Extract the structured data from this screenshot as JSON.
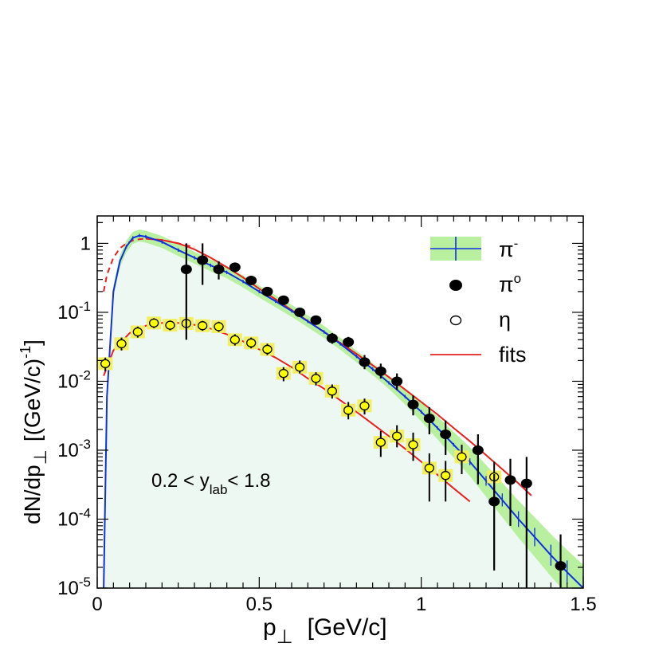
{
  "chart_data": {
    "type": "scatter",
    "scale": {
      "x": "linear",
      "y": "log"
    },
    "xlim": [
      0,
      1.5
    ],
    "ylim": [
      1e-05,
      2.5
    ],
    "xticks": [
      {
        "value": 0,
        "label": "0"
      },
      {
        "value": 0.5,
        "label": "0.5"
      },
      {
        "value": 1,
        "label": "1"
      },
      {
        "value": 1.5,
        "label": "1.5"
      }
    ],
    "yticks": [
      {
        "value": 1,
        "base": "1",
        "exp": ""
      },
      {
        "value": 0.1,
        "base": "10",
        "exp": "-1"
      },
      {
        "value": 0.01,
        "base": "10",
        "exp": "-2"
      },
      {
        "value": 0.001,
        "base": "10",
        "exp": "-3"
      },
      {
        "value": 0.0001,
        "base": "10",
        "exp": "-4"
      },
      {
        "value": 1e-05,
        "base": "10",
        "exp": "-5"
      }
    ],
    "xlabel": {
      "main": "p",
      "sub": "⊥",
      "unit": "[GeV/c]"
    },
    "ylabel": {
      "main": "dN/dp",
      "sub": "⊥",
      "unit": "[(GeV/c)",
      "sup": "-1",
      "close": "]"
    },
    "annotation": {
      "pre": "0.2 < y",
      "sub": "lab",
      "post": "< 1.8"
    },
    "legend": {
      "position": "top-right",
      "entries": [
        {
          "key": "piminus",
          "label": "π",
          "sup": "-"
        },
        {
          "key": "pi0",
          "label": "π",
          "sup": "o"
        },
        {
          "key": "eta",
          "label": "η",
          "sup": ""
        },
        {
          "key": "fits",
          "label": "fits",
          "sup": ""
        }
      ]
    },
    "colors": {
      "piminus_line": "#1030e0",
      "piminus_band": "#b8f0a0",
      "fill_area": "#eef8f2",
      "fit": "#e82020",
      "pi0_marker": "#000000",
      "eta_marker": "#ffff00",
      "eta_box": "#f2f060"
    },
    "series": [
      {
        "name": "piminus",
        "style": "line_with_band",
        "x": [
          0.02,
          0.03,
          0.05,
          0.07,
          0.09,
          0.11,
          0.13,
          0.15,
          0.2,
          0.25,
          0.3,
          0.35,
          0.4,
          0.45,
          0.5,
          0.55,
          0.6,
          0.65,
          0.7,
          0.75,
          0.8,
          0.85,
          0.9,
          0.95,
          1.0,
          1.05,
          1.1,
          1.15,
          1.2,
          1.25,
          1.3,
          1.35,
          1.4,
          1.45,
          1.5
        ],
        "y": [
          1e-05,
          0.006,
          0.2,
          0.55,
          0.9,
          1.2,
          1.3,
          1.25,
          1.05,
          0.8,
          0.62,
          0.48,
          0.38,
          0.28,
          0.2,
          0.145,
          0.105,
          0.074,
          0.052,
          0.035,
          0.023,
          0.015,
          0.0095,
          0.006,
          0.0036,
          0.0021,
          0.0012,
          0.00068,
          0.00036,
          0.00019,
          0.0001,
          5.5e-05,
          3e-05,
          1.7e-05,
          1e-05
        ]
      },
      {
        "name": "pi0",
        "style": "filled_circle",
        "points": [
          {
            "x": 0.275,
            "y": 0.42,
            "lo": 0.04,
            "hi": 1.0
          },
          {
            "x": 0.325,
            "y": 0.57,
            "lo": 0.25,
            "hi": 1.0
          },
          {
            "x": 0.375,
            "y": 0.42,
            "lo": 0.3,
            "hi": 0.55
          },
          {
            "x": 0.425,
            "y": 0.45,
            "lo": 0.38,
            "hi": 0.52
          },
          {
            "x": 0.475,
            "y": 0.29,
            "lo": 0.25,
            "hi": 0.33
          },
          {
            "x": 0.525,
            "y": 0.2,
            "lo": 0.17,
            "hi": 0.23
          },
          {
            "x": 0.575,
            "y": 0.15,
            "lo": 0.13,
            "hi": 0.17
          },
          {
            "x": 0.625,
            "y": 0.1,
            "lo": 0.087,
            "hi": 0.115
          },
          {
            "x": 0.675,
            "y": 0.077,
            "lo": 0.066,
            "hi": 0.088
          },
          {
            "x": 0.725,
            "y": 0.042,
            "lo": 0.035,
            "hi": 0.05
          },
          {
            "x": 0.775,
            "y": 0.037,
            "lo": 0.031,
            "hi": 0.044
          },
          {
            "x": 0.825,
            "y": 0.019,
            "lo": 0.015,
            "hi": 0.024
          },
          {
            "x": 0.875,
            "y": 0.014,
            "lo": 0.011,
            "hi": 0.018
          },
          {
            "x": 0.925,
            "y": 0.01,
            "lo": 0.0075,
            "hi": 0.013
          },
          {
            "x": 0.975,
            "y": 0.0046,
            "lo": 0.0032,
            "hi": 0.0062
          },
          {
            "x": 1.025,
            "y": 0.0029,
            "lo": 0.0017,
            "hi": 0.0042
          },
          {
            "x": 1.075,
            "y": 0.0017,
            "lo": 0.00085,
            "hi": 0.0027
          },
          {
            "x": 1.175,
            "y": 0.001,
            "lo": 0.00032,
            "hi": 0.0017
          },
          {
            "x": 1.225,
            "y": 0.00018,
            "lo": 1.8e-05,
            "hi": 0.00045
          },
          {
            "x": 1.275,
            "y": 0.00037,
            "lo": 8e-05,
            "hi": 0.00075
          },
          {
            "x": 1.325,
            "y": 0.00033,
            "lo": 1e-05,
            "hi": 0.0008
          },
          {
            "x": 1.43,
            "y": 2.1e-05,
            "lo": 1e-05,
            "hi": 6e-05
          }
        ]
      },
      {
        "name": "eta",
        "style": "open_circle",
        "points": [
          {
            "x": 0.025,
            "y": 0.018,
            "lo": 0.014,
            "hi": 0.022
          },
          {
            "x": 0.075,
            "y": 0.035,
            "lo": 0.028,
            "hi": 0.043
          },
          {
            "x": 0.125,
            "y": 0.052,
            "lo": 0.043,
            "hi": 0.062
          },
          {
            "x": 0.175,
            "y": 0.07,
            "lo": 0.059,
            "hi": 0.082
          },
          {
            "x": 0.225,
            "y": 0.065,
            "lo": 0.055,
            "hi": 0.076
          },
          {
            "x": 0.275,
            "y": 0.069,
            "lo": 0.058,
            "hi": 0.08
          },
          {
            "x": 0.325,
            "y": 0.064,
            "lo": 0.054,
            "hi": 0.075
          },
          {
            "x": 0.375,
            "y": 0.062,
            "lo": 0.052,
            "hi": 0.073
          },
          {
            "x": 0.425,
            "y": 0.04,
            "lo": 0.033,
            "hi": 0.048
          },
          {
            "x": 0.475,
            "y": 0.036,
            "lo": 0.03,
            "hi": 0.043
          },
          {
            "x": 0.525,
            "y": 0.029,
            "lo": 0.024,
            "hi": 0.035
          },
          {
            "x": 0.575,
            "y": 0.013,
            "lo": 0.01,
            "hi": 0.016
          },
          {
            "x": 0.625,
            "y": 0.016,
            "lo": 0.013,
            "hi": 0.02
          },
          {
            "x": 0.675,
            "y": 0.011,
            "lo": 0.0087,
            "hi": 0.0135
          },
          {
            "x": 0.725,
            "y": 0.0072,
            "lo": 0.0056,
            "hi": 0.009
          },
          {
            "x": 0.775,
            "y": 0.0038,
            "lo": 0.0028,
            "hi": 0.005
          },
          {
            "x": 0.825,
            "y": 0.0044,
            "lo": 0.0033,
            "hi": 0.0056
          },
          {
            "x": 0.875,
            "y": 0.0013,
            "lo": 0.0008,
            "hi": 0.0019
          },
          {
            "x": 0.925,
            "y": 0.0016,
            "lo": 0.0011,
            "hi": 0.0023
          },
          {
            "x": 0.975,
            "y": 0.0012,
            "lo": 0.0007,
            "hi": 0.0018
          },
          {
            "x": 1.025,
            "y": 0.00055,
            "lo": 0.00018,
            "hi": 0.0009
          },
          {
            "x": 1.075,
            "y": 0.00043,
            "lo": 0.00018,
            "hi": 0.0007
          },
          {
            "x": 1.125,
            "y": 0.0008,
            "lo": 0.00045,
            "hi": 0.0012
          },
          {
            "x": 1.225,
            "y": 0.00041,
            "lo": 0.00015,
            "hi": 0.00068
          }
        ]
      },
      {
        "name": "fit_pi_dashed",
        "style": "dashed",
        "x": [
          0.02,
          0.03,
          0.05,
          0.07,
          0.09,
          0.11,
          0.13,
          0.15,
          0.2,
          0.25,
          0.3
        ],
        "y": [
          0.2,
          0.35,
          0.62,
          0.85,
          1.0,
          1.1,
          1.15,
          1.17,
          1.12,
          1.0,
          0.88
        ]
      },
      {
        "name": "fit_pi",
        "style": "solid",
        "x": [
          0.15,
          0.2,
          0.25,
          0.3,
          0.35,
          0.4,
          0.45,
          0.5,
          0.55,
          0.6,
          0.65,
          0.7,
          0.75,
          0.8,
          0.85,
          0.9,
          0.95,
          1.0,
          1.05,
          1.1,
          1.15,
          1.2,
          1.25,
          1.3,
          1.34
        ],
        "y": [
          1.17,
          1.12,
          1.0,
          0.82,
          0.62,
          0.45,
          0.32,
          0.22,
          0.155,
          0.108,
          0.075,
          0.052,
          0.036,
          0.025,
          0.017,
          0.0115,
          0.0076,
          0.005,
          0.0033,
          0.0021,
          0.00135,
          0.00085,
          0.00053,
          0.00033,
          0.00022
        ]
      },
      {
        "name": "fit_eta",
        "style": "solid",
        "x": [
          0.02,
          0.05,
          0.1,
          0.15,
          0.2,
          0.25,
          0.3,
          0.35,
          0.4,
          0.45,
          0.5,
          0.55,
          0.6,
          0.65,
          0.7,
          0.75,
          0.8,
          0.85,
          0.9,
          0.95,
          1.0,
          1.05,
          1.1,
          1.15
        ],
        "y": [
          0.012,
          0.028,
          0.05,
          0.064,
          0.07,
          0.07,
          0.066,
          0.058,
          0.048,
          0.038,
          0.029,
          0.022,
          0.016,
          0.011,
          0.0078,
          0.0053,
          0.0036,
          0.0024,
          0.0016,
          0.00105,
          0.00068,
          0.00044,
          0.00028,
          0.00018
        ]
      }
    ]
  }
}
